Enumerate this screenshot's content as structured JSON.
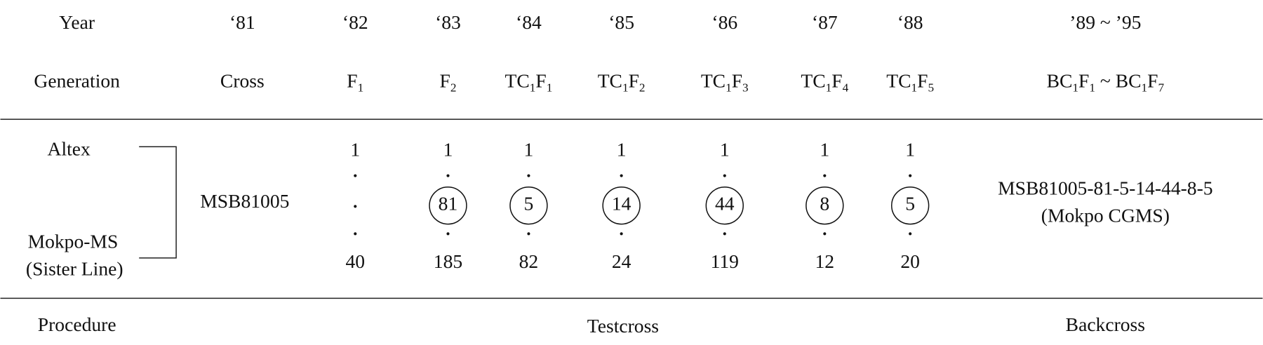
{
  "header": {
    "label": "Year",
    "years": [
      "‘81",
      "‘82",
      "‘83",
      "‘84",
      "‘85",
      "‘86",
      "‘87",
      "‘88",
      "’89 ~ ’95"
    ]
  },
  "generation": {
    "label": "Generation",
    "values": [
      [
        "Cross"
      ],
      [
        "F",
        "1"
      ],
      [
        "F",
        "2"
      ],
      [
        "TC",
        "1",
        "F",
        "1"
      ],
      [
        "TC",
        "1",
        "F",
        "2"
      ],
      [
        "TC",
        "1",
        "F",
        "3"
      ],
      [
        "TC",
        "1",
        "F",
        "4"
      ],
      [
        "TC",
        "1",
        "F",
        "5"
      ],
      [
        "BC",
        "1",
        "F",
        "1",
        " ~ BC",
        "1",
        "F",
        "7"
      ]
    ]
  },
  "selection": {
    "parents": [
      "Altex",
      "Mokpo-MS",
      "(Sister Line)"
    ],
    "cross": "MSB81005",
    "lines": [
      {
        "top": 1,
        "bottom": 40
      },
      {
        "top": 1,
        "selected": 81,
        "bottom": 185
      },
      {
        "top": 1,
        "selected": 5,
        "bottom": 82
      },
      {
        "top": 1,
        "selected": 14,
        "bottom": 24
      },
      {
        "top": 1,
        "selected": 44,
        "bottom": 119
      },
      {
        "top": 1,
        "selected": 8,
        "bottom": 12
      },
      {
        "top": 1,
        "selected": 5,
        "bottom": 20
      }
    ],
    "result": [
      "MSB81005-81-5-14-44-8-5",
      "(Mokpo CGMS)"
    ]
  },
  "procedure": {
    "label": "Procedure",
    "testcross": "Testcross",
    "backcross": "Backcross"
  }
}
